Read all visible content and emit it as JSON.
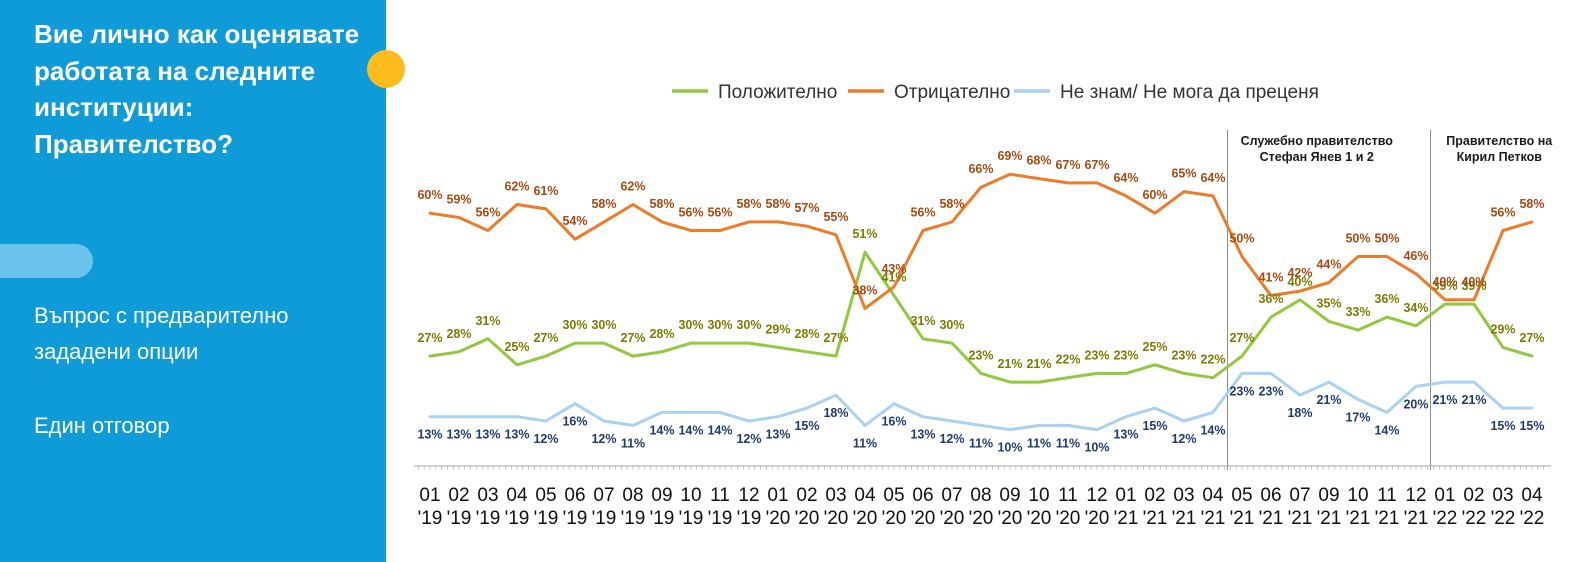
{
  "sidebar": {
    "question": "Вие лично как оценявате работата на следните институции: Правителство?",
    "note1": "Въпрос с предварително зададени опции",
    "note2": "Един отговор"
  },
  "colors": {
    "sidebar_bg": "#0e9bd8",
    "accent_dot": "#fcbd1c",
    "pill": "#69c3ea",
    "positive_line": "#92c83e",
    "positive_label": "#7d7a00",
    "negative_line": "#ee7b2a",
    "negative_label": "#a64a0f",
    "dontknow_line": "#a9d2f2",
    "dontknow_label": "#1f3b6e"
  },
  "chart_data": {
    "type": "line",
    "x": [
      "01 '19",
      "02 '19",
      "03 '19",
      "04 '19",
      "05 '19",
      "06 '19",
      "07 '19",
      "08 '19",
      "09 '19",
      "10 '19",
      "11 '19",
      "12 '19",
      "01 '20",
      "02 '20",
      "03 '20",
      "04 '20",
      "05 '20",
      "06 '20",
      "07 '20",
      "08 '20",
      "09 '20",
      "10 '20",
      "11 '20",
      "12 '20",
      "01 '21",
      "02 '21",
      "03 '21",
      "04 '21",
      "05 '21",
      "06 '21",
      "07 '21",
      "09 '21",
      "10 '21",
      "11 '21",
      "12 '21",
      "01 '22",
      "02 '22",
      "03 '22",
      "04 '22"
    ],
    "x_ticks_month": [
      "01",
      "02",
      "03",
      "04",
      "05",
      "06",
      "07",
      "08",
      "09",
      "10",
      "11",
      "12",
      "01",
      "02",
      "03",
      "04",
      "05",
      "06",
      "07",
      "08",
      "09",
      "10",
      "11",
      "12",
      "01",
      "02",
      "03",
      "04",
      "05",
      "06",
      "07",
      "09",
      "10",
      "11",
      "12",
      "01",
      "02",
      "03",
      "04"
    ],
    "x_ticks_year": [
      "'19",
      "'19",
      "'19",
      "'19",
      "'19",
      "'19",
      "'19",
      "'19",
      "'19",
      "'19",
      "'19",
      "'19",
      "'20",
      "'20",
      "'20",
      "'20",
      "'20",
      "'20",
      "'20",
      "'20",
      "'20",
      "'20",
      "'20",
      "'20",
      "'21",
      "'21",
      "'21",
      "'21",
      "'21",
      "'21",
      "'21",
      "'21",
      "'21",
      "'21",
      "'21",
      "'22",
      "'22",
      "'22",
      "'22"
    ],
    "series": [
      {
        "name": "Положително",
        "key": "positive",
        "values": [
          27,
          28,
          31,
          25,
          27,
          30,
          30,
          27,
          28,
          30,
          30,
          30,
          29,
          28,
          27,
          51,
          41,
          31,
          30,
          23,
          21,
          21,
          22,
          23,
          23,
          25,
          23,
          22,
          27,
          36,
          40,
          35,
          33,
          36,
          34,
          39,
          39,
          29,
          27
        ]
      },
      {
        "name": "Отрицателно",
        "key": "negative",
        "values": [
          60,
          59,
          56,
          62,
          61,
          54,
          58,
          62,
          58,
          56,
          56,
          58,
          58,
          57,
          55,
          38,
          43,
          56,
          58,
          66,
          69,
          68,
          67,
          67,
          64,
          60,
          65,
          64,
          50,
          41,
          42,
          44,
          50,
          50,
          46,
          40,
          40,
          56,
          58
        ]
      },
      {
        "name": "Не знам/ Не мога да преценя",
        "key": "dontknow",
        "values": [
          13,
          13,
          13,
          13,
          12,
          16,
          12,
          11,
          14,
          14,
          14,
          12,
          13,
          15,
          18,
          11,
          16,
          13,
          12,
          11,
          10,
          11,
          11,
          10,
          13,
          15,
          12,
          14,
          23,
          23,
          18,
          21,
          17,
          14,
          20,
          21,
          21,
          15,
          15
        ]
      }
    ],
    "labels": {
      "positive": [
        "27%",
        "28%",
        "31%",
        "25%",
        "27%",
        "30%",
        "30%",
        "27%",
        "28%",
        "30%",
        "30%",
        "30%",
        "29%",
        "28%",
        "27%",
        "51%",
        "41%",
        "31%",
        "30%",
        "23%",
        "21%",
        "21%",
        "22%",
        "23%",
        "23%",
        "25%",
        "23%",
        "22%",
        "27%",
        "36%",
        "40%",
        "35%",
        "33%",
        "36%",
        "34%",
        "39%",
        "39%",
        "29%",
        "27%"
      ],
      "negative": [
        "60%",
        "59%",
        "56%",
        "62%",
        "61%",
        "54%",
        "58%",
        "62%",
        "58%",
        "56%",
        "56%",
        "58%",
        "58%",
        "57%",
        "55%",
        "38%",
        "43%",
        "56%",
        "58%",
        "66%",
        "69%",
        "68%",
        "67%",
        "67%",
        "64%",
        "60%",
        "65%",
        "64%",
        "50%",
        "41%",
        "42%",
        "44%",
        "50%",
        "50%",
        "46%",
        "40%",
        "40%",
        "56%",
        "58%"
      ],
      "dontknow": [
        "13%",
        "13%",
        "13%",
        "13%",
        "12%",
        "16%",
        "12%",
        "11%",
        "14%",
        "14%",
        "14%",
        "12%",
        "13%",
        "15%",
        "18%",
        "11%",
        "16%",
        "13%",
        "12%",
        "11%",
        "10%",
        "11%",
        "11%",
        "10%",
        "13%",
        "15%",
        "12%",
        "14%",
        "23%",
        "23%",
        "18%",
        "21%",
        "17%",
        "14%",
        "20%",
        "21%",
        "21%",
        "15%",
        "15%"
      ]
    },
    "annotations": [
      {
        "text_lines": [
          "Служебно правителство",
          "Стефан Янев 1 и 2"
        ],
        "after_index": 27
      },
      {
        "text_lines": [
          "Правителство на",
          "Кирил Петков"
        ],
        "after_index": 34
      }
    ],
    "legend_position": "top",
    "grid": false
  }
}
